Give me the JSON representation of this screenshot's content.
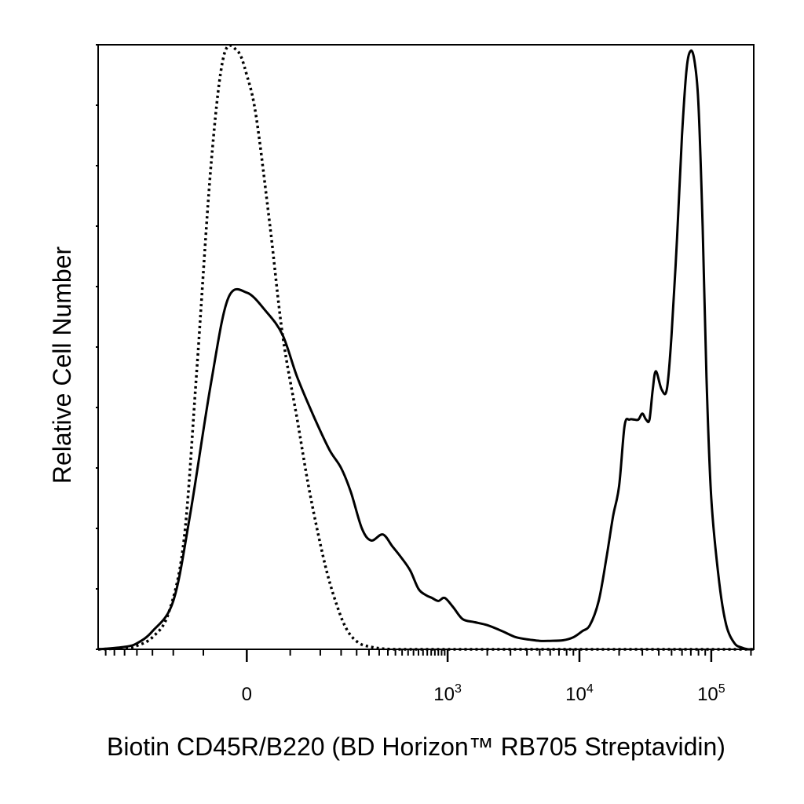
{
  "chart_data": {
    "type": "line",
    "title": "",
    "xlabel": "Biotin CD45R/B220 (BD Horizon™ RB705 Streptavidin)",
    "ylabel": "Relative Cell Number",
    "x_scale": "biexponential",
    "xlim": [
      -400,
      210000
    ],
    "ylim": [
      0,
      100
    ],
    "grid": false,
    "legend": "none",
    "x_ticks": [
      {
        "value": 0,
        "base": "0",
        "exp": ""
      },
      {
        "value": 1000,
        "base": "10",
        "exp": "3"
      },
      {
        "value": 10000,
        "base": "10",
        "exp": "4"
      },
      {
        "value": 100000,
        "base": "10",
        "exp": "5"
      }
    ],
    "series": [
      {
        "style": "solid",
        "color": "#000000",
        "x": [
          -400,
          -250,
          -200,
          -150,
          -100,
          -70,
          -40,
          -20,
          0,
          20,
          40,
          60,
          90,
          120,
          150,
          180,
          220,
          260,
          320,
          380,
          450,
          520,
          600,
          680,
          760,
          850,
          950,
          1100,
          1300,
          1600,
          2000,
          2600,
          3300,
          4200,
          5000,
          6000,
          7500,
          9000,
          10500,
          12000,
          14000,
          16000,
          18000,
          20000,
          22000,
          24000,
          26000,
          28000,
          30000,
          32000,
          34000,
          36000,
          38000,
          42000,
          46000,
          50000,
          55000,
          60000,
          65000,
          70000,
          75000,
          80000,
          86000,
          92000,
          100000,
          115000,
          130000,
          150000,
          170000,
          190000,
          210000
        ],
        "y": [
          0,
          0.4,
          1,
          3,
          8,
          22,
          44,
          58,
          59,
          56,
          52,
          45,
          38,
          33,
          30,
          26,
          20,
          18,
          19,
          17,
          15,
          13,
          10,
          9,
          8.5,
          8,
          8.5,
          7,
          5,
          4.5,
          4,
          3,
          2,
          1.6,
          1.4,
          1.4,
          1.5,
          2,
          3,
          4,
          8,
          15,
          22,
          27,
          37,
          38,
          38,
          38,
          39,
          38,
          38,
          43,
          46,
          43,
          43,
          52,
          68,
          85,
          96,
          99,
          97,
          90,
          70,
          45,
          25,
          11,
          4,
          1,
          0.3,
          0,
          0
        ]
      },
      {
        "style": "dotted",
        "color": "#000000",
        "x": [
          -400,
          -250,
          -200,
          -150,
          -110,
          -80,
          -60,
          -40,
          -25,
          -10,
          0,
          10,
          25,
          40,
          60,
          80,
          110,
          140,
          170,
          210,
          260,
          320,
          400,
          500,
          1000,
          10000,
          100000,
          210000
        ],
        "y": [
          0,
          0.2,
          0.6,
          2,
          6,
          18,
          45,
          80,
          98,
          99,
          95,
          88,
          70,
          52,
          38,
          26,
          14,
          7,
          3,
          1,
          0.4,
          0.1,
          0,
          0,
          0,
          0,
          0,
          0
        ]
      }
    ]
  }
}
